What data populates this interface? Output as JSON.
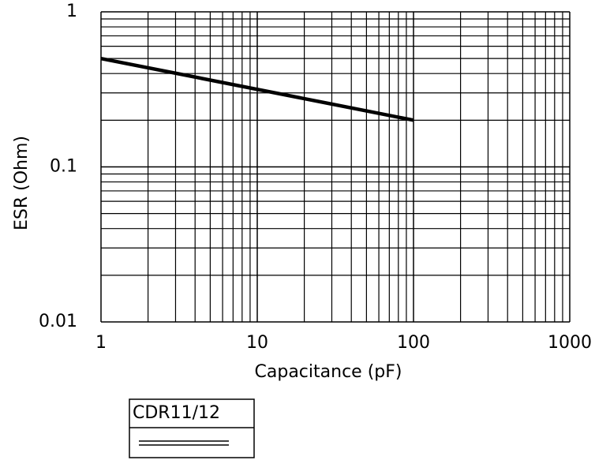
{
  "chart_data": {
    "type": "line",
    "x_label": "Capacitance (pF)",
    "y_label": "ESR (Ohm)",
    "x": [
      1,
      100
    ],
    "series": [
      {
        "name": "CDR11/12",
        "color": "#000000",
        "values": [
          0.5,
          0.2
        ]
      }
    ],
    "xlim": [
      1,
      1000
    ],
    "xticks": [
      1,
      10,
      100,
      1000
    ],
    "ylim": [
      0.01,
      1
    ],
    "yticks": [
      0.01,
      0.1,
      1
    ],
    "xscale": "log",
    "yscale": "log",
    "grid": true,
    "minor_grid": true,
    "legend": "below"
  }
}
